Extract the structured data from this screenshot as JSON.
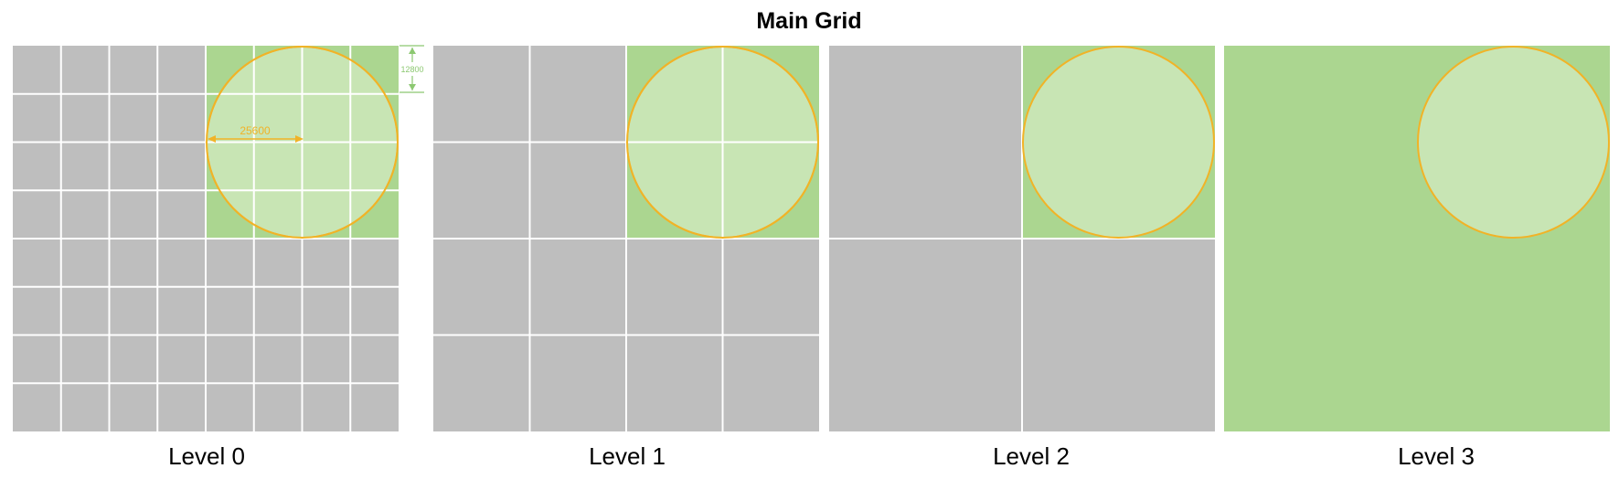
{
  "title": "Main Grid",
  "colors": {
    "cell_gray": "#bebebe",
    "cell_green": "#abd690",
    "circle_fill": "#c8e5b4",
    "circle_stroke": "#f1b327",
    "grid_line": "#ffffff",
    "dimension_green": "#8cc871",
    "label_text": "#000000"
  },
  "levels": [
    {
      "label": "Level 0",
      "divisions": 8,
      "green_region": "top-right quadrant",
      "circle": true,
      "grid_over_circle": true
    },
    {
      "label": "Level 1",
      "divisions": 4,
      "green_region": "top-right quadrant",
      "circle": true,
      "grid_over_circle": true
    },
    {
      "label": "Level 2",
      "divisions": 2,
      "green_region": "top-right quadrant",
      "circle": true,
      "grid_over_circle": false
    },
    {
      "label": "Level 3",
      "divisions": 1,
      "green_region": "entire grid",
      "circle": true,
      "grid_over_circle": false
    }
  ],
  "dimensions": {
    "horizontal_label": "25600",
    "vertical_label": "12800"
  }
}
